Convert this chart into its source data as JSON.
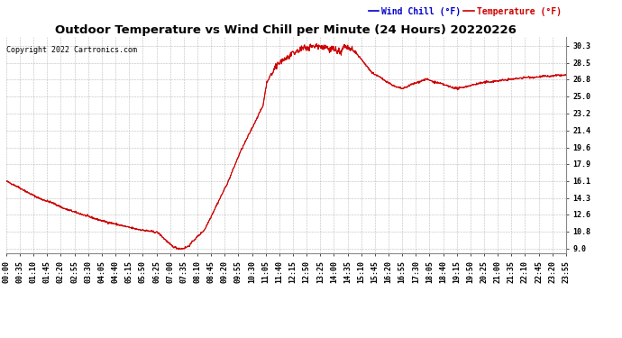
{
  "title": "Outdoor Temperature vs Wind Chill per Minute (24 Hours) 20220226",
  "copyright": "Copyright 2022 Cartronics.com",
  "legend_wind_chill": "Wind Chill (°F)",
  "legend_temperature": "Temperature (°F)",
  "yticks": [
    9.0,
    10.8,
    12.6,
    14.3,
    16.1,
    17.9,
    19.6,
    21.4,
    23.2,
    25.0,
    26.8,
    28.5,
    30.3
  ],
  "xtick_labels": [
    "00:00",
    "00:35",
    "01:10",
    "01:45",
    "02:20",
    "02:55",
    "03:30",
    "04:05",
    "04:40",
    "05:15",
    "05:50",
    "06:25",
    "07:00",
    "07:35",
    "08:10",
    "08:45",
    "09:20",
    "09:55",
    "10:30",
    "11:05",
    "11:40",
    "12:15",
    "12:50",
    "13:25",
    "14:00",
    "14:35",
    "15:10",
    "15:45",
    "16:20",
    "16:55",
    "17:30",
    "18:05",
    "18:40",
    "19:15",
    "19:50",
    "20:25",
    "21:00",
    "21:35",
    "22:10",
    "22:45",
    "23:20",
    "23:55"
  ],
  "line_color": "#cc0000",
  "wind_chill_color": "#0000cc",
  "temperature_color": "#cc0000",
  "background_color": "#ffffff",
  "grid_color": "#aaaaaa",
  "title_color": "#000000",
  "copyright_color": "#000000",
  "ylim": [
    8.5,
    31.2
  ],
  "title_fontsize": 9.5,
  "copyright_fontsize": 6,
  "legend_fontsize": 7,
  "tick_fontsize": 6
}
